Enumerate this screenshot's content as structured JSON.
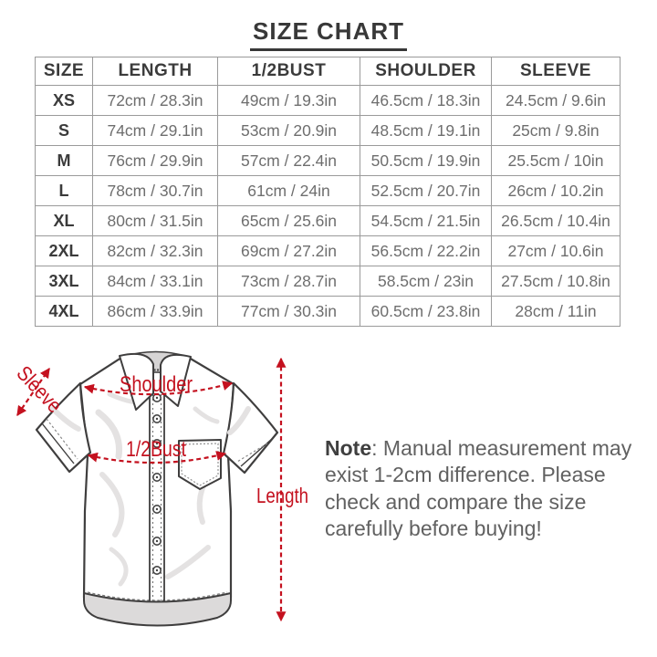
{
  "title": "SIZE CHART",
  "table": {
    "headers": [
      "SIZE",
      "LENGTH",
      "1/2BUST",
      "SHOULDER",
      "SLEEVE"
    ],
    "rows": [
      [
        "XS",
        "72cm / 28.3in",
        "49cm / 19.3in",
        "46.5cm / 18.3in",
        "24.5cm / 9.6in"
      ],
      [
        "S",
        "74cm / 29.1in",
        "53cm / 20.9in",
        "48.5cm / 19.1in",
        "25cm / 9.8in"
      ],
      [
        "M",
        "76cm / 29.9in",
        "57cm / 22.4in",
        "50.5cm / 19.9in",
        "25.5cm / 10in"
      ],
      [
        "L",
        "78cm / 30.7in",
        "61cm / 24in",
        "52.5cm / 20.7in",
        "26cm / 10.2in"
      ],
      [
        "XL",
        "80cm / 31.5in",
        "65cm / 25.6in",
        "54.5cm / 21.5in",
        "26.5cm / 10.4in"
      ],
      [
        "2XL",
        "82cm / 32.3in",
        "69cm / 27.2in",
        "56.5cm / 22.2in",
        "27cm / 10.6in"
      ],
      [
        "3XL",
        "84cm / 33.1in",
        "73cm / 28.7in",
        "58.5cm / 23in",
        "27.5cm / 10.8in"
      ],
      [
        "4XL",
        "86cm / 33.9in",
        "77cm / 30.3in",
        "60.5cm / 23.8in",
        "28cm / 11in"
      ]
    ]
  },
  "diagram": {
    "annotation_color": "#c4111f",
    "labels": {
      "sleeve": "Sleeve",
      "shoulder": "Shoulder",
      "bust": "1/2Bust",
      "length": "Length"
    }
  },
  "note": {
    "label": "Note",
    "lines": [
      ": Manual measurement may",
      "exist 1-2cm difference. Please",
      "check and compare the size",
      "carefully before buying!"
    ]
  }
}
